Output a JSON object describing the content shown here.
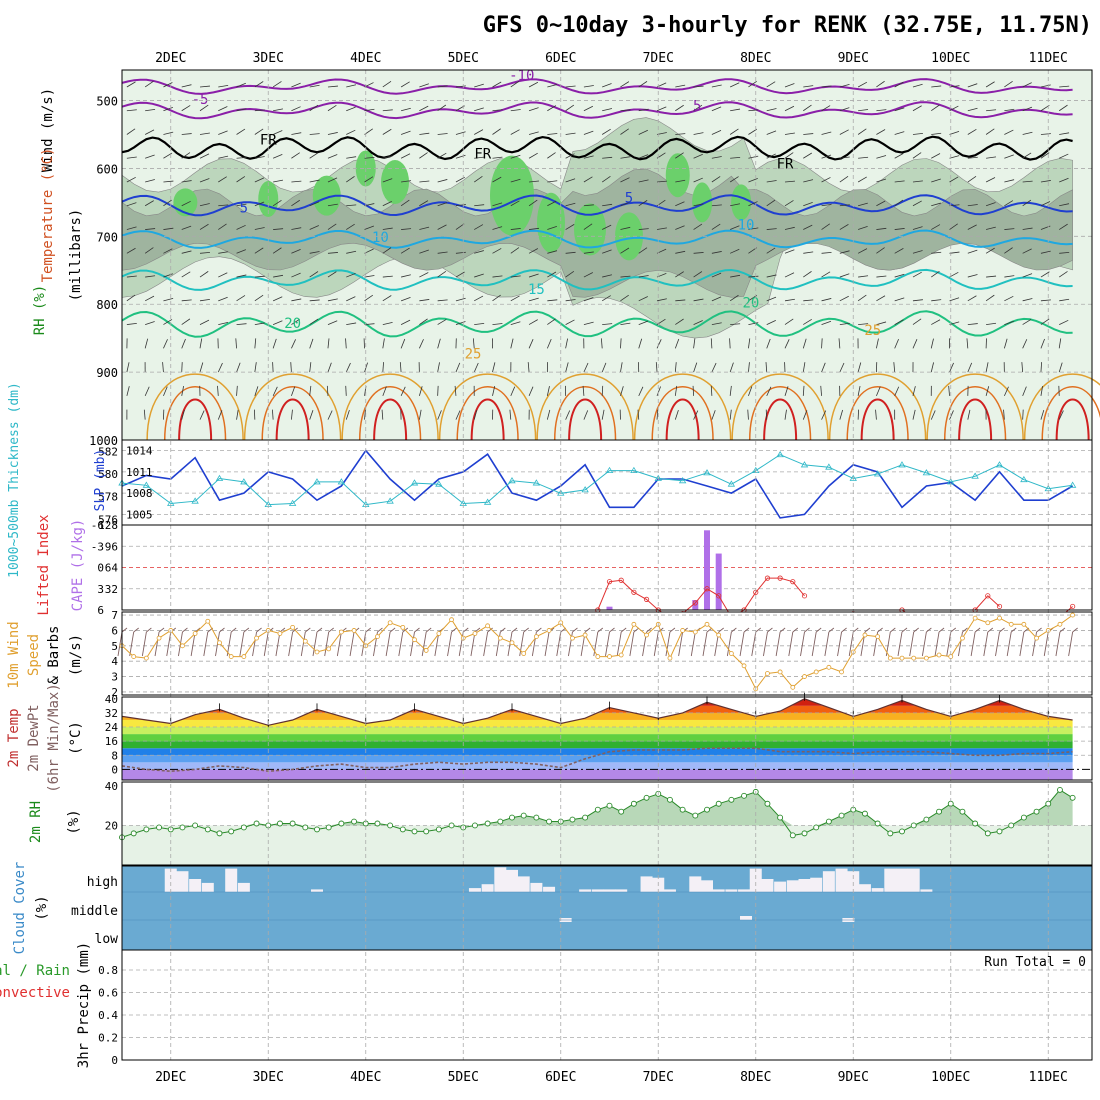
{
  "title": "GFS 0~10day 3-hourly for RENK (32.75E, 11.75N)",
  "day_labels": [
    "2DEC",
    "3DEC",
    "4DEC",
    "5DEC",
    "6DEC",
    "7DEC",
    "8DEC",
    "9DEC",
    "10DEC",
    "11DEC"
  ],
  "colors": {
    "grid": "#aaaaaa",
    "sounding_bg_light": "#e8f3e8",
    "sounding_bg_mid": "#bcd6bc",
    "sounding_bg_dark": "#9fb49f",
    "rh_green": "#6bd06b",
    "slp": "#1f3fd0",
    "thickness": "#2fb8c8",
    "lifted_index": "#e03030",
    "cape": "#b070e8",
    "wind_speed": "#e0a030",
    "barbs": "#806060",
    "rh2m": "#2a8a2a",
    "cloud_blue": "#6aaad2",
    "cloud_white": "#f4f0f6"
  },
  "panels": {
    "sounding": {
      "ylabel_wind": "Wind (m/s)",
      "ylabel_temp": "Temperature (°C)",
      "ylabel_rh": "RH (%)",
      "ylabel_units": "(millibars)",
      "y_ticks": [
        "500",
        "600",
        "700",
        "800",
        "900",
        "1000"
      ],
      "contour_labels": {
        "freezing": "FR",
        "t_minus10": "-10",
        "t_minus5": "-5",
        "t_5": "5",
        "t_10": "10",
        "t_15": "15",
        "t_20": "20",
        "t_25": "25"
      }
    },
    "slp_thickness": {
      "ylabel_left": "1000~500mb Thickness (dm)",
      "ylabel_right": "SLP (mb)",
      "left_ticks": [
        "582",
        "580",
        "578",
        "576"
      ],
      "right_ticks": [
        "1014",
        "1011",
        "1008",
        "1005"
      ]
    },
    "cape_li": {
      "ylabel_left": "Lifted Index",
      "ylabel_right": "CAPE (J/kg)",
      "li_ticks": [
        "-6",
        "-3",
        "0",
        "3",
        "6"
      ],
      "cape_ticks": [
        "128",
        "96",
        "64",
        "32"
      ]
    },
    "wind10m": {
      "ylabel_a": "10m Wind",
      "ylabel_b": "Speed",
      "ylabel_c": "& Barbs",
      "ylabel_units": "(m/s)",
      "y_ticks": [
        "7",
        "6",
        "5",
        "4",
        "3",
        "2"
      ]
    },
    "temp2m": {
      "ylabel_a": "2m Temp",
      "ylabel_b": "2m DewPt",
      "ylabel_c": "(6hr Min/Max)",
      "ylabel_units": "(°C)",
      "y_ticks": [
        "40",
        "32",
        "24",
        "16",
        "8",
        "0"
      ]
    },
    "rh2m": {
      "ylabel": "2m RH",
      "ylabel_units": "(%)",
      "y_ticks": [
        "40",
        "20"
      ]
    },
    "cloud": {
      "ylabel": "Cloud Cover",
      "ylabel_units": "(%)",
      "levels": [
        "high",
        "middle",
        "low"
      ]
    },
    "precip": {
      "ylabel_a": "Total / Rain",
      "ylabel_b": "Convective",
      "ylabel_c": "3hr Precip (mm)",
      "y_ticks": [
        "0.8",
        "0.6",
        "0.4",
        "0.2",
        "0"
      ],
      "run_total": "Run Total = 0"
    }
  },
  "chart_data": [
    {
      "type": "line",
      "name": "slp_thickness",
      "x_unit": "days since 1DEC 00Z",
      "series": [
        {
          "name": "SLP (mb)",
          "x": [
            1.5,
            1.75,
            2.0,
            2.25,
            2.5,
            2.75,
            3.0,
            3.25,
            3.5,
            3.75,
            4.0,
            4.25,
            4.5,
            4.75,
            5.0,
            5.25,
            5.5,
            5.75,
            6.0,
            6.25,
            6.5,
            6.75,
            7.0,
            7.25,
            7.5,
            7.75,
            8.0,
            8.25,
            8.5,
            8.75,
            9.0,
            9.25,
            9.5,
            9.75,
            10.0,
            10.25,
            10.5,
            10.75,
            11.0,
            11.25
          ],
          "values": [
            1009,
            1010.5,
            1010,
            1013,
            1007,
            1008,
            1011,
            1010,
            1007,
            1009,
            1014,
            1010,
            1007,
            1010,
            1011,
            1013.5,
            1008,
            1007,
            1009,
            1012,
            1006,
            1006,
            1010,
            1010,
            1009,
            1008,
            1010,
            1004.5,
            1005,
            1009,
            1012,
            1011,
            1006,
            1009,
            1009.5,
            1007,
            1011,
            1007,
            1007,
            1009
          ]
        },
        {
          "name": "1000~500mb Thickness (dm)",
          "x": [
            1.5,
            1.75,
            2.0,
            2.25,
            2.5,
            2.75,
            3.0,
            3.25,
            3.5,
            3.75,
            4.0,
            4.25,
            4.5,
            4.75,
            5.0,
            5.25,
            5.5,
            5.75,
            6.0,
            6.25,
            6.5,
            6.75,
            7.0,
            7.25,
            7.5,
            7.75,
            8.0,
            8.25,
            8.5,
            8.75,
            9.0,
            9.25,
            9.5,
            9.75,
            10.0,
            10.25,
            10.5,
            10.75,
            11.0,
            11.25
          ],
          "values": [
            579.2,
            579,
            577.4,
            577.6,
            579.6,
            579.3,
            577.3,
            577.4,
            579.3,
            579.3,
            577.3,
            577.6,
            579.2,
            579.1,
            577.4,
            577.5,
            579.4,
            579.2,
            578.3,
            578.6,
            580.3,
            580.3,
            579.6,
            579.4,
            580.1,
            579.1,
            580.3,
            581.7,
            580.8,
            580.6,
            579.6,
            580,
            580.8,
            580.1,
            579.3,
            579.8,
            580.8,
            579.5,
            578.7,
            579
          ]
        }
      ],
      "ylim_left": [
        575.5,
        583
      ],
      "ylim_right": [
        1003.5,
        1015.5
      ],
      "xlabel": "",
      "ylabel": "SLP (mb)"
    },
    {
      "type": "bar",
      "name": "cape_lifted_index",
      "x_unit": "days since 1DEC 00Z",
      "series": [
        {
          "name": "Lifted Index",
          "x": [
            6.38,
            6.5,
            6.62,
            6.75,
            6.88,
            7.0,
            7.12,
            7.25,
            7.38,
            7.5,
            7.62,
            7.75,
            7.88,
            8.0,
            8.12,
            8.25,
            8.38,
            8.5,
            8.75,
            9.0,
            9.5,
            9.62,
            10.25,
            10.38,
            10.5,
            11.12,
            11.25
          ],
          "values": [
            6,
            2,
            1.8,
            3.5,
            4.5,
            6,
            7,
            6.5,
            5,
            3,
            4,
            7,
            6,
            3.5,
            1.5,
            1.5,
            2,
            4,
            7,
            6.5,
            6,
            7,
            6,
            4,
            5.5,
            7,
            5.5
          ]
        },
        {
          "name": "CAPE (J/kg)",
          "x": [
            6.5,
            7.38,
            7.5,
            7.62
          ],
          "values": [
            5,
            15,
            120,
            85
          ]
        }
      ],
      "ylim_li": [
        6,
        -6
      ],
      "ylim_cape": [
        0,
        128
      ]
    },
    {
      "type": "line",
      "name": "wind10m_speed",
      "x_unit": "days since 1DEC 00Z",
      "series": [
        {
          "name": "Speed (m/s)",
          "x": [
            1.5,
            1.62,
            1.75,
            1.88,
            2.0,
            2.12,
            2.25,
            2.38,
            2.5,
            2.62,
            2.75,
            2.88,
            3.0,
            3.12,
            3.25,
            3.38,
            3.5,
            3.62,
            3.75,
            3.88,
            4.0,
            4.12,
            4.25,
            4.38,
            4.5,
            4.62,
            4.75,
            4.88,
            5.0,
            5.12,
            5.25,
            5.38,
            5.5,
            5.62,
            5.75,
            5.88,
            6.0,
            6.12,
            6.25,
            6.38,
            6.5,
            6.62,
            6.75,
            6.88,
            7.0,
            7.12,
            7.25,
            7.38,
            7.5,
            7.62,
            7.75,
            7.88,
            8.0,
            8.12,
            8.25,
            8.38,
            8.5,
            8.62,
            8.75,
            8.88,
            9.0,
            9.12,
            9.25,
            9.38,
            9.5,
            9.62,
            9.75,
            9.88,
            10.0,
            10.12,
            10.25,
            10.38,
            10.5,
            10.62,
            10.75,
            10.88,
            11.0,
            11.12,
            11.25
          ],
          "values": [
            5,
            4.3,
            4.2,
            5.5,
            6,
            5,
            5.8,
            6.6,
            5.2,
            4.3,
            4.3,
            5.5,
            6,
            5.8,
            6.2,
            5.3,
            4.6,
            4.8,
            5.9,
            6,
            5,
            5.6,
            6.5,
            6.2,
            5.4,
            4.7,
            5.8,
            6.7,
            5.5,
            5.8,
            6.3,
            5.5,
            5.2,
            4.5,
            5.6,
            6,
            6.5,
            5.5,
            5.7,
            4.3,
            4.3,
            4.4,
            6.4,
            5.7,
            6.4,
            4.2,
            6,
            5.9,
            6.4,
            5.7,
            4.5,
            3.7,
            2.2,
            3.2,
            3.3,
            2.3,
            3,
            3.3,
            3.6,
            3.3,
            4.6,
            5.7,
            5.6,
            4.2,
            4.2,
            4.2,
            4.2,
            4.4,
            4.3,
            5.5,
            6.8,
            6.5,
            6.8,
            6.4,
            6.4,
            5.5,
            6,
            6.4,
            7
          ]
        }
      ],
      "ylim": [
        1.8,
        7.2
      ]
    },
    {
      "type": "area",
      "name": "temp2m",
      "x_unit": "days since 1DEC 00Z",
      "series": [
        {
          "name": "2m Temp (°C)",
          "x": [
            1.5,
            1.75,
            2.0,
            2.25,
            2.5,
            2.75,
            3.0,
            3.25,
            3.5,
            3.75,
            4.0,
            4.25,
            4.5,
            4.75,
            5.0,
            5.25,
            5.5,
            5.75,
            6.0,
            6.25,
            6.5,
            6.75,
            7.0,
            7.25,
            7.5,
            7.75,
            8.0,
            8.25,
            8.5,
            8.75,
            9.0,
            9.25,
            9.5,
            9.75,
            10.0,
            10.25,
            10.5,
            10.75,
            11.0,
            11.25
          ],
          "values": [
            30,
            28,
            26,
            31,
            34,
            29,
            25,
            28,
            34,
            30,
            26,
            28,
            34,
            30,
            26,
            29,
            34,
            30,
            26,
            29,
            35,
            32,
            29,
            32,
            38,
            34,
            30,
            33,
            40,
            35,
            30,
            34,
            39,
            34,
            30,
            34,
            39,
            34,
            30,
            28
          ]
        },
        {
          "name": "2m DewPt (°C)",
          "x": [
            1.5,
            1.75,
            2.0,
            2.25,
            2.5,
            2.75,
            3.0,
            3.25,
            3.5,
            3.75,
            4.0,
            4.25,
            4.5,
            4.75,
            5.0,
            5.25,
            5.5,
            5.75,
            6.0,
            6.25,
            6.5,
            6.75,
            7.0,
            7.25,
            7.5,
            7.75,
            8.0,
            8.25,
            8.5,
            8.75,
            9.0,
            9.25,
            9.5,
            9.75,
            10.0,
            10.25,
            10.5,
            10.75,
            11.0,
            11.25
          ],
          "values": [
            2,
            0,
            -1,
            0,
            2,
            1,
            -1,
            0,
            2,
            3,
            1,
            1,
            3,
            4,
            3,
            4,
            4,
            3,
            1,
            6,
            10,
            11,
            11,
            11,
            12,
            12,
            12,
            10,
            10,
            10,
            9,
            10,
            10,
            10,
            9,
            8,
            8,
            9,
            9,
            10
          ]
        }
      ],
      "ylim": [
        -6,
        41
      ]
    },
    {
      "type": "area",
      "name": "rh2m",
      "x_unit": "days since 1DEC 00Z",
      "series": [
        {
          "name": "2m RH (%)",
          "x": [
            1.5,
            1.62,
            1.75,
            1.88,
            2.0,
            2.12,
            2.25,
            2.38,
            2.5,
            2.62,
            2.75,
            2.88,
            3.0,
            3.12,
            3.25,
            3.38,
            3.5,
            3.62,
            3.75,
            3.88,
            4.0,
            4.12,
            4.25,
            4.38,
            4.5,
            4.62,
            4.75,
            4.88,
            5.0,
            5.12,
            5.25,
            5.38,
            5.5,
            5.62,
            5.75,
            5.88,
            6.0,
            6.12,
            6.25,
            6.38,
            6.5,
            6.62,
            6.75,
            6.88,
            7.0,
            7.12,
            7.25,
            7.38,
            7.5,
            7.62,
            7.75,
            7.88,
            8.0,
            8.12,
            8.25,
            8.38,
            8.5,
            8.62,
            8.75,
            8.88,
            9.0,
            9.12,
            9.25,
            9.38,
            9.5,
            9.62,
            9.75,
            9.88,
            10.0,
            10.12,
            10.25,
            10.38,
            10.5,
            10.62,
            10.75,
            10.88,
            11.0,
            11.12,
            11.25
          ],
          "values": [
            14,
            16,
            18,
            19,
            18,
            19,
            20,
            18,
            16,
            17,
            19,
            21,
            20,
            21,
            21,
            19,
            18,
            19,
            21,
            22,
            21,
            21,
            20,
            18,
            17,
            17,
            18,
            20,
            19,
            20,
            21,
            22,
            24,
            25,
            24,
            22,
            22,
            23,
            24,
            28,
            30,
            27,
            31,
            34,
            36,
            33,
            28,
            25,
            28,
            31,
            33,
            35,
            37,
            31,
            24,
            15,
            16,
            19,
            22,
            25,
            28,
            26,
            21,
            16,
            17,
            20,
            23,
            27,
            31,
            27,
            21,
            16,
            17,
            20,
            24,
            27,
            31,
            38,
            34
          ]
        }
      ],
      "ylim": [
        0,
        42
      ]
    },
    {
      "type": "bar",
      "name": "cloud_cover_high",
      "x_unit": "days since 1DEC 00Z",
      "series": [
        {
          "name": "high cloud (%)",
          "x": [
            2.0,
            2.12,
            2.25,
            2.38,
            2.62,
            2.75,
            3.5,
            5.12,
            5.25,
            5.38,
            5.5,
            5.62,
            5.75,
            5.88,
            6.25,
            6.38,
            6.5,
            6.62,
            6.88,
            7.0,
            7.12,
            7.38,
            7.5,
            7.62,
            7.75,
            7.88,
            8.0,
            8.12,
            8.25,
            8.38,
            8.5,
            8.62,
            8.75,
            8.88,
            9.0,
            9.12,
            9.25,
            9.38,
            9.5,
            9.62,
            9.75
          ],
          "values": [
            90,
            80,
            50,
            35,
            90,
            35,
            10,
            15,
            30,
            95,
            85,
            60,
            35,
            20,
            10,
            10,
            10,
            10,
            60,
            55,
            10,
            60,
            45,
            10,
            10,
            10,
            90,
            50,
            40,
            45,
            50,
            55,
            80,
            90,
            80,
            30,
            15,
            90,
            90,
            90,
            10
          ]
        }
      ]
    }
  ]
}
